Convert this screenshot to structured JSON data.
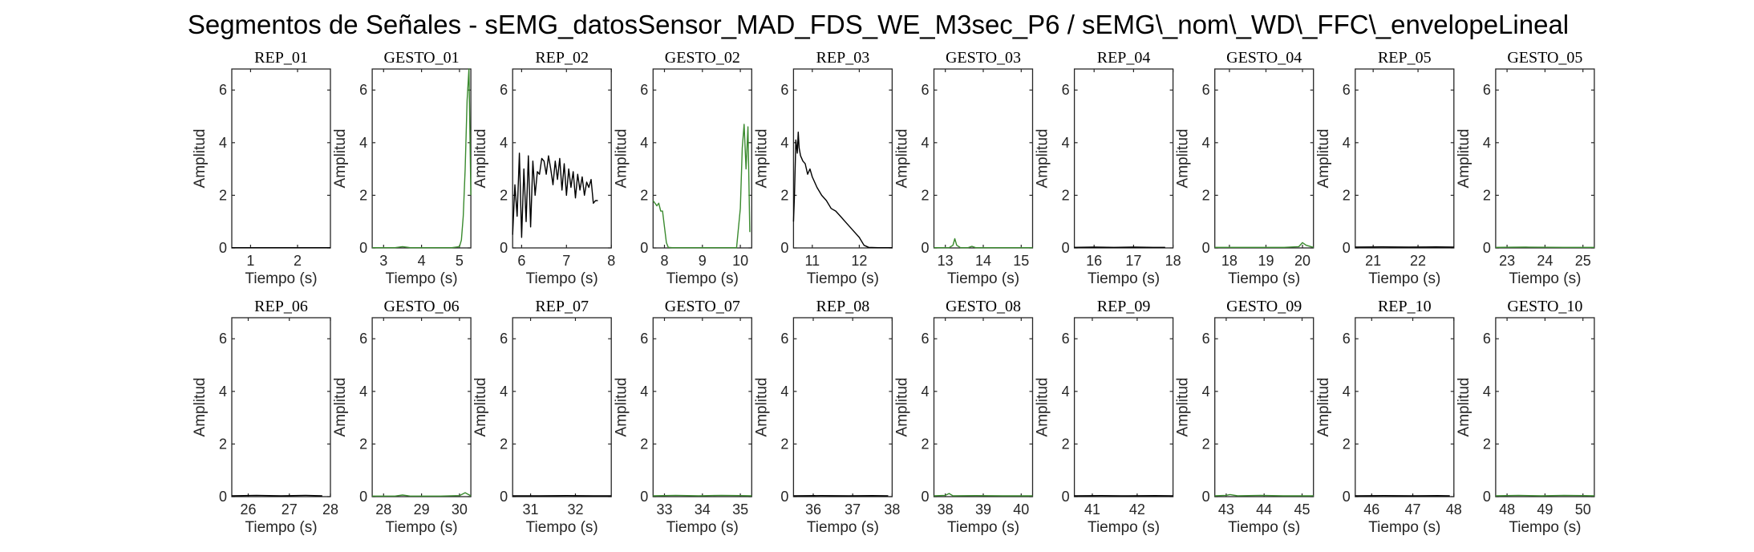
{
  "figure": {
    "title": "Segmentos de Señales - sEMG_datosSensor_MAD_FDS_WE_M3sec_P6 / sEMG\\_nom\\_WD\\_FFC\\_envelopeLineal"
  },
  "colors": {
    "rep": "#000000",
    "gesto": "#3a8a2e",
    "axis": "#262626"
  },
  "chart_data": [
    {
      "type": "line",
      "title": "REP_01",
      "xlabel": "Tiempo (s)",
      "ylabel": "Amplitud",
      "xlim": [
        0.6,
        2.7
      ],
      "ylim": [
        0,
        6.8
      ],
      "xticks": [
        1,
        2
      ],
      "yticks": [
        0,
        2,
        4,
        6
      ],
      "series": [
        {
          "color": "#000000",
          "x": [
            0.6,
            1.2,
            1.8,
            2.4,
            2.7
          ],
          "y": [
            0.01,
            0.01,
            0.01,
            0.01,
            0.01
          ]
        }
      ]
    },
    {
      "type": "line",
      "title": "GESTO_01",
      "xlabel": "Tiempo (s)",
      "ylabel": "Amplitud",
      "xlim": [
        2.7,
        5.3
      ],
      "ylim": [
        0,
        6.8
      ],
      "xticks": [
        3,
        4,
        5
      ],
      "yticks": [
        0,
        2,
        4,
        6
      ],
      "series": [
        {
          "color": "#3a8a2e",
          "x": [
            2.7,
            3.3,
            3.5,
            3.7,
            4.2,
            4.8,
            5.0,
            5.05,
            5.1,
            5.15,
            5.2,
            5.25,
            5.3
          ],
          "y": [
            0.01,
            0.01,
            0.05,
            0.01,
            0.01,
            0.01,
            0.05,
            0.3,
            1.2,
            3.0,
            5.6,
            6.8,
            2.0
          ]
        }
      ]
    },
    {
      "type": "line",
      "title": "REP_02",
      "xlabel": "Tiempo (s)",
      "ylabel": "Amplitud",
      "xlim": [
        5.8,
        8.0
      ],
      "ylim": [
        0,
        6.8
      ],
      "xticks": [
        6,
        7,
        8
      ],
      "yticks": [
        0,
        2,
        4,
        6
      ],
      "series": [
        {
          "color": "#000000",
          "x": [
            5.8,
            5.85,
            5.9,
            5.95,
            6.0,
            6.05,
            6.1,
            6.15,
            6.2,
            6.25,
            6.3,
            6.35,
            6.4,
            6.45,
            6.5,
            6.55,
            6.6,
            6.65,
            6.7,
            6.75,
            6.8,
            6.85,
            6.9,
            6.95,
            7.0,
            7.05,
            7.1,
            7.15,
            7.2,
            7.25,
            7.3,
            7.35,
            7.4,
            7.45,
            7.5,
            7.55,
            7.6,
            7.65,
            7.7
          ],
          "y": [
            0.5,
            2.4,
            1.2,
            3.6,
            0.4,
            3.0,
            1.0,
            3.5,
            0.8,
            3.3,
            2.0,
            2.9,
            2.8,
            3.4,
            3.3,
            2.8,
            3.5,
            3.0,
            2.4,
            3.3,
            2.6,
            3.4,
            2.2,
            3.2,
            2.0,
            3.0,
            2.3,
            2.9,
            1.9,
            2.8,
            2.2,
            2.7,
            2.0,
            2.5,
            2.3,
            2.6,
            1.7,
            1.8,
            1.8
          ]
        }
      ]
    },
    {
      "type": "line",
      "title": "GESTO_02",
      "xlabel": "Tiempo (s)",
      "ylabel": "Amplitud",
      "xlim": [
        7.7,
        10.3
      ],
      "ylim": [
        0,
        6.8
      ],
      "xticks": [
        8,
        9,
        10
      ],
      "yticks": [
        0,
        2,
        4,
        6
      ],
      "series": [
        {
          "color": "#3a8a2e",
          "x": [
            7.7,
            7.8,
            7.85,
            7.9,
            7.95,
            8.0,
            8.05,
            8.1,
            8.2,
            8.5,
            9.0,
            9.5,
            9.9,
            10.0,
            10.05,
            10.1,
            10.15,
            10.2,
            10.25
          ],
          "y": [
            1.8,
            1.6,
            1.7,
            1.4,
            1.4,
            0.8,
            0.2,
            0.02,
            0.01,
            0.01,
            0.01,
            0.01,
            0.01,
            1.5,
            3.8,
            4.7,
            3.0,
            4.6,
            0.6
          ]
        }
      ]
    },
    {
      "type": "line",
      "title": "REP_03",
      "xlabel": "Tiempo (s)",
      "ylabel": "Amplitud",
      "xlim": [
        10.6,
        12.7
      ],
      "ylim": [
        0,
        6.8
      ],
      "xticks": [
        11,
        12
      ],
      "yticks": [
        0,
        2,
        4,
        6
      ],
      "series": [
        {
          "color": "#000000",
          "x": [
            10.6,
            10.62,
            10.65,
            10.68,
            10.7,
            10.72,
            10.75,
            10.8,
            10.85,
            10.9,
            10.95,
            11.0,
            11.1,
            11.2,
            11.3,
            11.4,
            11.5,
            11.6,
            11.7,
            11.8,
            11.9,
            12.0,
            12.1,
            12.2,
            12.4,
            12.7
          ],
          "y": [
            1.0,
            2.0,
            4.1,
            3.6,
            4.4,
            3.8,
            3.5,
            3.3,
            3.2,
            2.8,
            3.0,
            2.7,
            2.3,
            2.0,
            1.8,
            1.5,
            1.4,
            1.2,
            1.0,
            0.8,
            0.6,
            0.4,
            0.1,
            0.02,
            0.01,
            0.01
          ]
        }
      ]
    },
    {
      "type": "line",
      "title": "GESTO_03",
      "xlabel": "Tiempo (s)",
      "ylabel": "Amplitud",
      "xlim": [
        12.7,
        15.3
      ],
      "ylim": [
        0,
        6.8
      ],
      "xticks": [
        13,
        14,
        15
      ],
      "yticks": [
        0,
        2,
        4,
        6
      ],
      "series": [
        {
          "color": "#3a8a2e",
          "x": [
            12.7,
            13.1,
            13.2,
            13.25,
            13.3,
            13.4,
            13.6,
            13.7,
            13.8,
            14.5,
            15.3
          ],
          "y": [
            0.01,
            0.01,
            0.1,
            0.35,
            0.1,
            0.01,
            0.01,
            0.06,
            0.01,
            0.01,
            0.01
          ]
        }
      ]
    },
    {
      "type": "line",
      "title": "REP_04",
      "xlabel": "Tiempo (s)",
      "ylabel": "Amplitud",
      "xlim": [
        15.5,
        18.0
      ],
      "ylim": [
        0,
        6.8
      ],
      "xticks": [
        16,
        17,
        18
      ],
      "yticks": [
        0,
        2,
        4,
        6
      ],
      "series": [
        {
          "color": "#000000",
          "x": [
            15.5,
            16.0,
            16.5,
            17.0,
            17.5,
            17.8
          ],
          "y": [
            0.02,
            0.03,
            0.02,
            0.03,
            0.02,
            0.02
          ]
        }
      ]
    },
    {
      "type": "line",
      "title": "GESTO_04",
      "xlabel": "Tiempo (s)",
      "ylabel": "Amplitud",
      "xlim": [
        17.6,
        20.3
      ],
      "ylim": [
        0,
        6.8
      ],
      "xticks": [
        18,
        19,
        20
      ],
      "yticks": [
        0,
        2,
        4,
        6
      ],
      "series": [
        {
          "color": "#3a8a2e",
          "x": [
            17.6,
            18.5,
            19.5,
            19.9,
            20.0,
            20.1,
            20.3
          ],
          "y": [
            0.02,
            0.02,
            0.02,
            0.05,
            0.2,
            0.1,
            0.02
          ]
        }
      ]
    },
    {
      "type": "line",
      "title": "REP_05",
      "xlabel": "Tiempo (s)",
      "ylabel": "Amplitud",
      "xlim": [
        20.6,
        22.8
      ],
      "ylim": [
        0,
        6.8
      ],
      "xticks": [
        21,
        22
      ],
      "yticks": [
        0,
        2,
        4,
        6
      ],
      "series": [
        {
          "color": "#000000",
          "x": [
            20.6,
            21.2,
            21.8,
            22.4,
            22.8
          ],
          "y": [
            0.03,
            0.04,
            0.03,
            0.04,
            0.03
          ]
        }
      ]
    },
    {
      "type": "line",
      "title": "GESTO_05",
      "xlabel": "Tiempo (s)",
      "ylabel": "Amplitud",
      "xlim": [
        22.7,
        25.3
      ],
      "ylim": [
        0,
        6.8
      ],
      "xticks": [
        23,
        24,
        25
      ],
      "yticks": [
        0,
        2,
        4,
        6
      ],
      "series": [
        {
          "color": "#3a8a2e",
          "x": [
            22.7,
            23.5,
            24.5,
            25.3
          ],
          "y": [
            0.02,
            0.03,
            0.02,
            0.02
          ]
        }
      ]
    },
    {
      "type": "line",
      "title": "REP_06",
      "xlabel": "Tiempo (s)",
      "ylabel": "Amplitud",
      "xlim": [
        25.6,
        28.0
      ],
      "ylim": [
        0,
        6.8
      ],
      "xticks": [
        26,
        27,
        28
      ],
      "yticks": [
        0,
        2,
        4,
        6
      ],
      "series": [
        {
          "color": "#000000",
          "x": [
            25.6,
            26.2,
            26.8,
            27.4,
            27.8
          ],
          "y": [
            0.03,
            0.05,
            0.03,
            0.05,
            0.03
          ]
        }
      ]
    },
    {
      "type": "line",
      "title": "GESTO_06",
      "xlabel": "Tiempo (s)",
      "ylabel": "Amplitud",
      "xlim": [
        27.7,
        30.3
      ],
      "ylim": [
        0,
        6.8
      ],
      "xticks": [
        28,
        29,
        30
      ],
      "yticks": [
        0,
        2,
        4,
        6
      ],
      "series": [
        {
          "color": "#3a8a2e",
          "x": [
            27.7,
            28.3,
            28.5,
            28.7,
            29.5,
            30.0,
            30.15,
            30.3
          ],
          "y": [
            0.02,
            0.02,
            0.06,
            0.02,
            0.02,
            0.04,
            0.15,
            0.03
          ]
        }
      ]
    },
    {
      "type": "line",
      "title": "REP_07",
      "xlabel": "Tiempo (s)",
      "ylabel": "Amplitud",
      "xlim": [
        30.6,
        32.8
      ],
      "ylim": [
        0,
        6.8
      ],
      "xticks": [
        31,
        32
      ],
      "yticks": [
        0,
        2,
        4,
        6
      ],
      "series": [
        {
          "color": "#000000",
          "x": [
            30.6,
            31.2,
            31.8,
            32.4,
            32.8
          ],
          "y": [
            0.03,
            0.03,
            0.04,
            0.03,
            0.03
          ]
        }
      ]
    },
    {
      "type": "line",
      "title": "GESTO_07",
      "xlabel": "Tiempo (s)",
      "ylabel": "Amplitud",
      "xlim": [
        32.7,
        35.3
      ],
      "ylim": [
        0,
        6.8
      ],
      "xticks": [
        33,
        34,
        35
      ],
      "yticks": [
        0,
        2,
        4,
        6
      ],
      "series": [
        {
          "color": "#3a8a2e",
          "x": [
            32.7,
            33.3,
            33.9,
            34.5,
            35.0,
            35.3
          ],
          "y": [
            0.03,
            0.05,
            0.03,
            0.05,
            0.04,
            0.03
          ]
        }
      ]
    },
    {
      "type": "line",
      "title": "REP_08",
      "xlabel": "Tiempo (s)",
      "ylabel": "Amplitud",
      "xlim": [
        35.5,
        38.0
      ],
      "ylim": [
        0,
        6.8
      ],
      "xticks": [
        36,
        37,
        38
      ],
      "yticks": [
        0,
        2,
        4,
        6
      ],
      "series": [
        {
          "color": "#000000",
          "x": [
            35.5,
            36.2,
            36.9,
            37.5,
            37.9
          ],
          "y": [
            0.03,
            0.04,
            0.03,
            0.04,
            0.03
          ]
        }
      ]
    },
    {
      "type": "line",
      "title": "GESTO_08",
      "xlabel": "Tiempo (s)",
      "ylabel": "Amplitud",
      "xlim": [
        37.7,
        40.3
      ],
      "ylim": [
        0,
        6.8
      ],
      "xticks": [
        38,
        39,
        40
      ],
      "yticks": [
        0,
        2,
        4,
        6
      ],
      "series": [
        {
          "color": "#3a8a2e",
          "x": [
            37.7,
            38.0,
            38.1,
            38.2,
            38.8,
            39.5,
            40.3
          ],
          "y": [
            0.03,
            0.05,
            0.12,
            0.03,
            0.04,
            0.03,
            0.03
          ]
        }
      ]
    },
    {
      "type": "line",
      "title": "REP_09",
      "xlabel": "Tiempo (s)",
      "ylabel": "Amplitud",
      "xlim": [
        40.6,
        42.8
      ],
      "ylim": [
        0,
        6.8
      ],
      "xticks": [
        41,
        42
      ],
      "yticks": [
        0,
        2,
        4,
        6
      ],
      "series": [
        {
          "color": "#000000",
          "x": [
            40.6,
            41.2,
            41.8,
            42.4,
            42.8
          ],
          "y": [
            0.03,
            0.04,
            0.03,
            0.04,
            0.03
          ]
        }
      ]
    },
    {
      "type": "line",
      "title": "GESTO_09",
      "xlabel": "Tiempo (s)",
      "ylabel": "Amplitud",
      "xlim": [
        42.7,
        45.3
      ],
      "ylim": [
        0,
        6.8
      ],
      "xticks": [
        43,
        44,
        45
      ],
      "yticks": [
        0,
        2,
        4,
        6
      ],
      "series": [
        {
          "color": "#3a8a2e",
          "x": [
            42.7,
            43.0,
            43.1,
            43.3,
            43.9,
            44.5,
            45.3
          ],
          "y": [
            0.03,
            0.05,
            0.08,
            0.03,
            0.05,
            0.03,
            0.03
          ]
        }
      ]
    },
    {
      "type": "line",
      "title": "REP_10",
      "xlabel": "Tiempo (s)",
      "ylabel": "Amplitud",
      "xlim": [
        45.6,
        48.0
      ],
      "ylim": [
        0,
        6.8
      ],
      "xticks": [
        46,
        47,
        48
      ],
      "yticks": [
        0,
        2,
        4,
        6
      ],
      "series": [
        {
          "color": "#000000",
          "x": [
            45.6,
            46.3,
            47.0,
            47.6,
            47.9
          ],
          "y": [
            0.03,
            0.04,
            0.03,
            0.04,
            0.03
          ]
        }
      ]
    },
    {
      "type": "line",
      "title": "GESTO_10",
      "xlabel": "Tiempo (s)",
      "ylabel": "Amplitud",
      "xlim": [
        47.7,
        50.3
      ],
      "ylim": [
        0,
        6.8
      ],
      "xticks": [
        48,
        49,
        50
      ],
      "yticks": [
        0,
        2,
        4,
        6
      ],
      "series": [
        {
          "color": "#3a8a2e",
          "x": [
            47.7,
            48.3,
            48.9,
            49.5,
            50.0,
            50.3
          ],
          "y": [
            0.03,
            0.05,
            0.03,
            0.05,
            0.04,
            0.03
          ]
        }
      ]
    }
  ]
}
